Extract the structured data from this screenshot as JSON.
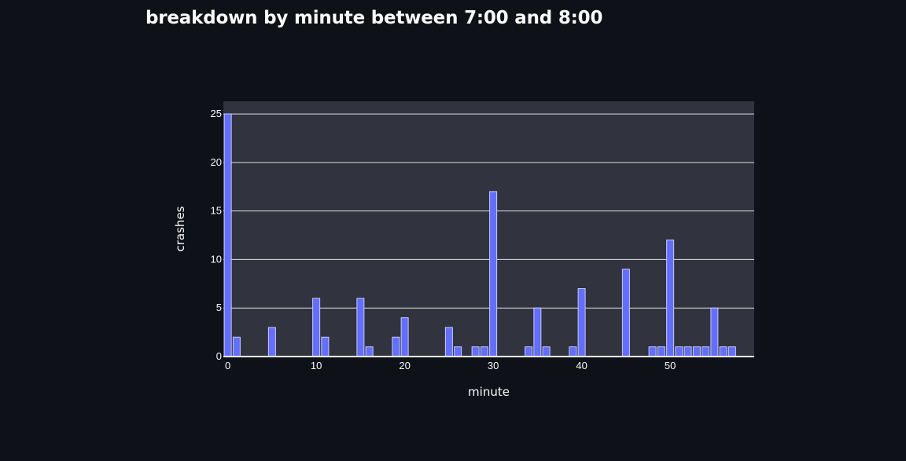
{
  "chart_data": {
    "type": "bar",
    "title": "breakdown by minute between 7:00 and 8:00",
    "xlabel": "minute",
    "ylabel": "crashes",
    "x": [
      0,
      1,
      5,
      10,
      11,
      15,
      16,
      19,
      20,
      25,
      26,
      28,
      29,
      30,
      34,
      35,
      36,
      39,
      40,
      45,
      48,
      49,
      50,
      51,
      52,
      53,
      54,
      55,
      56,
      57
    ],
    "values": [
      25,
      2,
      3,
      6,
      2,
      6,
      1,
      2,
      4,
      3,
      1,
      1,
      1,
      17,
      1,
      5,
      1,
      1,
      7,
      9,
      1,
      1,
      12,
      1,
      1,
      1,
      1,
      5,
      1,
      1
    ],
    "xlim": [
      -0.5,
      59.5
    ],
    "ylim": [
      0,
      26.3
    ],
    "x_ticks": [
      "0",
      "10",
      "20",
      "30",
      "40",
      "50"
    ],
    "y_ticks": [
      "0",
      "5",
      "10",
      "15",
      "20",
      "25"
    ],
    "grid": true,
    "colors": {
      "bar_fill": "#636efa",
      "bar_outline": "#c8ccff",
      "plot_bg": "#31333f",
      "page_bg": "#0e1117",
      "grid": "#ffffff",
      "text": "#fafafa"
    }
  }
}
